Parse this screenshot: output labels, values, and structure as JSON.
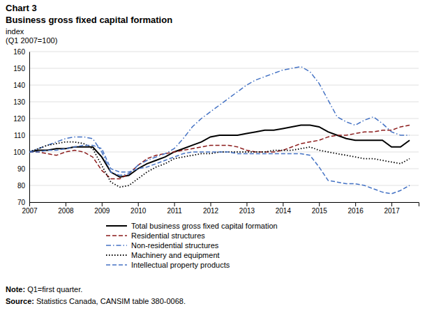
{
  "chart_data": {
    "type": "line",
    "title": "Chart 3",
    "subtitle": "Business gross fixed capital formation",
    "y_label": [
      "index",
      "(Q1 2007=100)"
    ],
    "annotations": [
      [
        "Note:",
        " Q1=first quarter."
      ],
      [
        "Source:",
        " Statistics Canada, CANSIM table 380-0068."
      ]
    ],
    "x": [
      2007.0,
      2007.25,
      2007.5,
      2007.75,
      2008.0,
      2008.25,
      2008.5,
      2008.75,
      2009.0,
      2009.25,
      2009.5,
      2009.75,
      2010.0,
      2010.25,
      2010.5,
      2010.75,
      2011.0,
      2011.25,
      2011.5,
      2011.75,
      2012.0,
      2012.25,
      2012.5,
      2012.75,
      2013.0,
      2013.25,
      2013.5,
      2013.75,
      2014.0,
      2014.25,
      2014.5,
      2014.75,
      2015.0,
      2015.25,
      2015.5,
      2015.75,
      2016.0,
      2016.25,
      2016.5,
      2016.75,
      2017.0,
      2017.25,
      2017.5
    ],
    "xlim": [
      2007.0,
      2017.75
    ],
    "xticks": [
      2007,
      2008,
      2009,
      2010,
      2011,
      2012,
      2013,
      2014,
      2015,
      2016,
      2017
    ],
    "ylim": [
      70,
      160
    ],
    "yticks": [
      70,
      80,
      90,
      100,
      110,
      120,
      130,
      140,
      150,
      160
    ],
    "grid": true,
    "legend": "bottom",
    "series": [
      {
        "name": "Total business gross fixed capital formation",
        "color": "#000000",
        "line_style": "solid",
        "values": [
          100,
          101,
          101,
          102,
          102,
          103,
          103,
          103,
          97,
          88,
          85,
          86,
          90,
          93,
          95,
          97,
          100,
          102,
          104,
          106,
          109,
          110,
          110,
          110,
          111,
          112,
          113,
          113,
          114,
          115,
          116,
          116,
          115,
          112,
          110,
          108,
          107,
          107,
          107,
          107,
          103,
          103,
          107
        ]
      },
      {
        "name": "Residential structures",
        "color": "#8B1A1A",
        "line_style": "dashed",
        "values": [
          100,
          100,
          99,
          98,
          100,
          101,
          100,
          97,
          89,
          84,
          84,
          87,
          92,
          96,
          98,
          99,
          100,
          101,
          102,
          103,
          104,
          104,
          104,
          103,
          101,
          100,
          100,
          100,
          101,
          103,
          105,
          106,
          107,
          109,
          110,
          110,
          111,
          112,
          112,
          113,
          113,
          115,
          116
        ]
      },
      {
        "name": "Non-residential structures",
        "color": "#4472C4",
        "line_style": "dashdot",
        "values": [
          100,
          102,
          104,
          106,
          108,
          109,
          109,
          108,
          100,
          88,
          86,
          87,
          92,
          95,
          97,
          99,
          102,
          108,
          115,
          120,
          124,
          128,
          132,
          136,
          140,
          143,
          145,
          147,
          149,
          150,
          151,
          148,
          141,
          131,
          121,
          118,
          116,
          119,
          121,
          117,
          112,
          110,
          110
        ]
      },
      {
        "name": "Machinery and equipment",
        "color": "#000000",
        "line_style": "dotted",
        "values": [
          100,
          102,
          104,
          105,
          106,
          106,
          105,
          102,
          92,
          82,
          79,
          80,
          84,
          88,
          91,
          93,
          96,
          97,
          98,
          99,
          99,
          100,
          100,
          100,
          100,
          100,
          100,
          101,
          101,
          101,
          102,
          103,
          101,
          100,
          99,
          98,
          97,
          96,
          96,
          95,
          94,
          93,
          96
        ]
      },
      {
        "name": "Intellectual property products",
        "color": "#4472C4",
        "line_style": "dashed",
        "values": [
          100,
          100,
          101,
          101,
          102,
          103,
          104,
          104,
          102,
          90,
          88,
          88,
          90,
          91,
          93,
          95,
          97,
          99,
          100,
          100,
          100,
          100,
          100,
          99,
          99,
          99,
          99,
          99,
          99,
          99,
          99,
          98,
          91,
          83,
          82,
          81,
          81,
          80,
          78,
          76,
          75,
          77,
          80
        ]
      }
    ]
  }
}
